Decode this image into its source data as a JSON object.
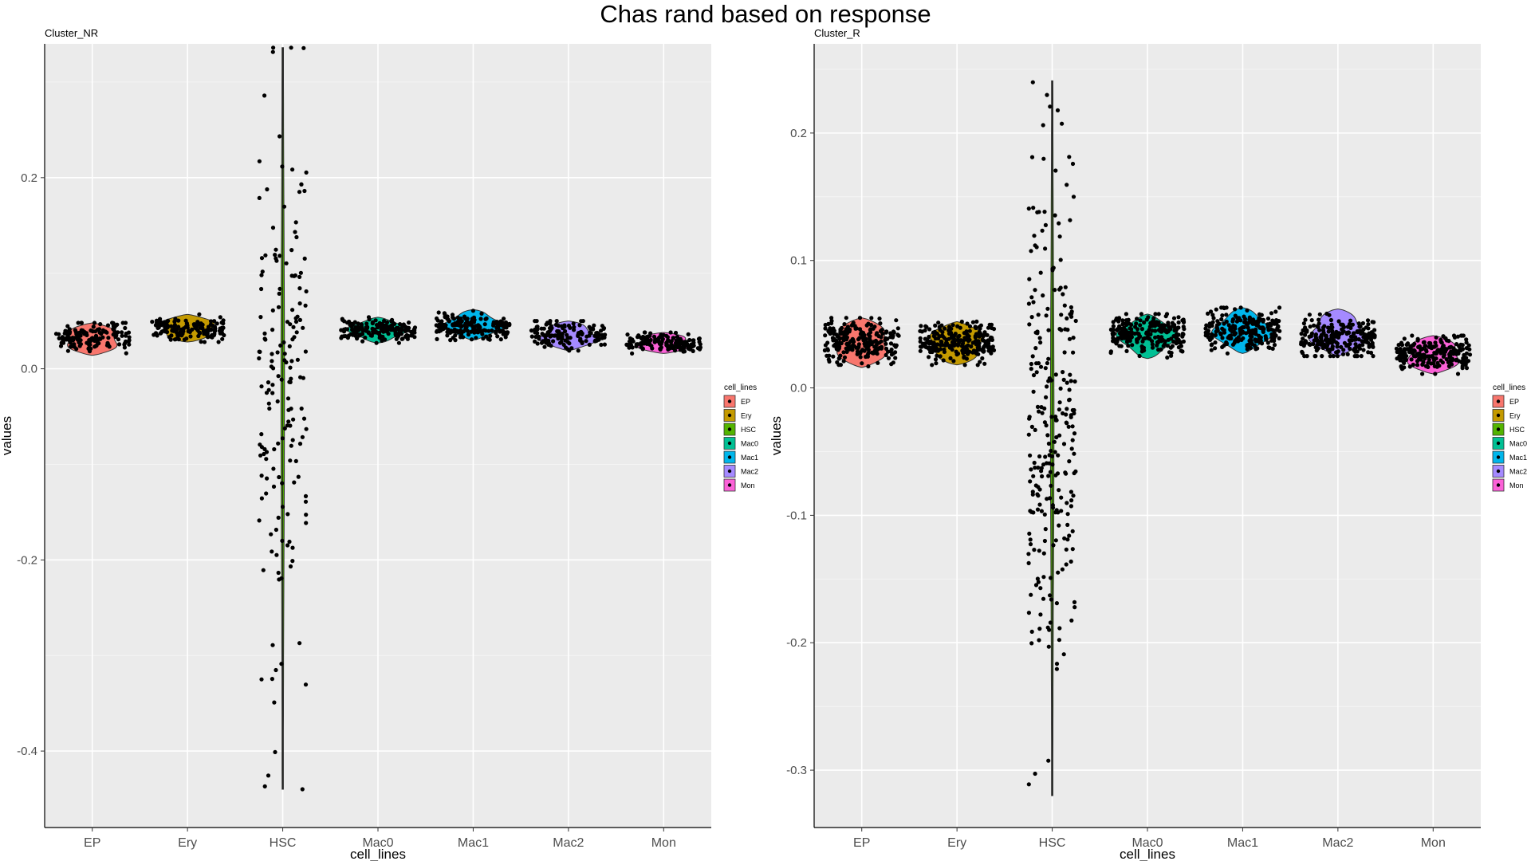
{
  "figure": {
    "title": "Chas rand based on response"
  },
  "chart_data": [
    {
      "type": "violin",
      "title": "Cluster_NR",
      "xlabel": "cell_lines",
      "ylabel": "values",
      "ylim": [
        -0.48,
        0.34
      ],
      "yticks": [
        -0.4,
        -0.2,
        0.0,
        0.2
      ],
      "ytick_labels": [
        "-0.4",
        "-0.2",
        "0.0",
        "0.2"
      ],
      "grid": true,
      "legend": {
        "title": "cell_lines",
        "placement": "right",
        "entries": [
          "EP",
          "Ery",
          "HSC",
          "Mac0",
          "Mac1",
          "Mac2",
          "Mon"
        ]
      },
      "categories": [
        "EP",
        "Ery",
        "HSC",
        "Mac0",
        "Mac1",
        "Mac2",
        "Mon"
      ],
      "groups": [
        {
          "name": "EP",
          "color": "#F8766D",
          "min": 0.014,
          "max": 0.048,
          "median": 0.033,
          "n_points": 150
        },
        {
          "name": "Ery",
          "color": "#C49A00",
          "min": 0.028,
          "max": 0.057,
          "median": 0.042,
          "n_points": 150
        },
        {
          "name": "HSC",
          "color": "#53B400",
          "min": -0.44,
          "max": 0.336,
          "median": -0.02,
          "n_points": 170
        },
        {
          "name": "Mac0",
          "color": "#00C094",
          "min": 0.027,
          "max": 0.054,
          "median": 0.041,
          "n_points": 170
        },
        {
          "name": "Mac1",
          "color": "#00B6EB",
          "min": 0.03,
          "max": 0.062,
          "median": 0.044,
          "n_points": 170
        },
        {
          "name": "Mac2",
          "color": "#A58AFF",
          "min": 0.019,
          "max": 0.05,
          "median": 0.035,
          "n_points": 150
        },
        {
          "name": "Mon",
          "color": "#FB61D7",
          "min": 0.016,
          "max": 0.038,
          "median": 0.027,
          "n_points": 150
        }
      ]
    },
    {
      "type": "violin",
      "title": "Cluster_R",
      "xlabel": "cell_lines",
      "ylabel": "values",
      "ylim": [
        -0.345,
        0.27
      ],
      "yticks": [
        -0.3,
        -0.2,
        -0.1,
        0.0,
        0.1,
        0.2
      ],
      "ytick_labels": [
        "-0.3",
        "-0.2",
        "-0.1",
        "0.0",
        "0.1",
        "0.2"
      ],
      "grid": true,
      "legend": {
        "title": "cell_lines",
        "placement": "right",
        "entries": [
          "EP",
          "Ery",
          "HSC",
          "Mac0",
          "Mac1",
          "Mac2",
          "Mon"
        ]
      },
      "categories": [
        "EP",
        "Ery",
        "HSC",
        "Mac0",
        "Mac1",
        "Mac2",
        "Mon"
      ],
      "groups": [
        {
          "name": "EP",
          "color": "#F8766D",
          "min": 0.016,
          "max": 0.055,
          "median": 0.036,
          "n_points": 230
        },
        {
          "name": "Ery",
          "color": "#C49A00",
          "min": 0.018,
          "max": 0.052,
          "median": 0.036,
          "n_points": 230
        },
        {
          "name": "HSC",
          "color": "#53B400",
          "min": -0.32,
          "max": 0.241,
          "median": -0.03,
          "n_points": 260
        },
        {
          "name": "Mac0",
          "color": "#00C094",
          "min": 0.023,
          "max": 0.058,
          "median": 0.044,
          "n_points": 230
        },
        {
          "name": "Mac1",
          "color": "#00B6EB",
          "min": 0.027,
          "max": 0.063,
          "median": 0.046,
          "n_points": 230
        },
        {
          "name": "Mac2",
          "color": "#A58AFF",
          "min": 0.025,
          "max": 0.062,
          "median": 0.04,
          "n_points": 230
        },
        {
          "name": "Mon",
          "color": "#FB61D7",
          "min": 0.011,
          "max": 0.041,
          "median": 0.027,
          "n_points": 230
        }
      ]
    }
  ]
}
